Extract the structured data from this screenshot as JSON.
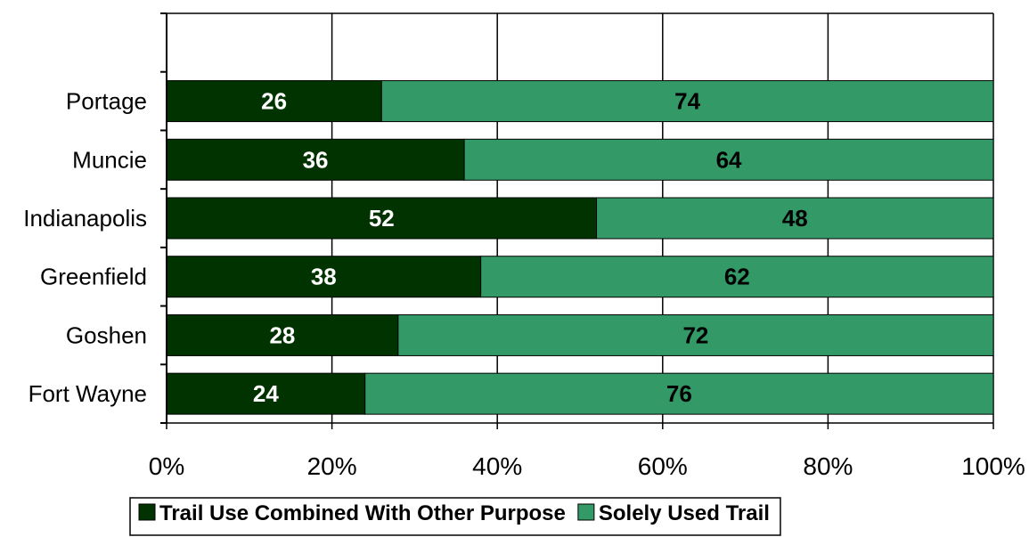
{
  "chart_data": {
    "type": "bar",
    "orientation": "horizontal",
    "stacked": true,
    "categories": [
      "Portage",
      "Muncie",
      "Indianapolis",
      "Greenfield",
      "Goshen",
      "Fort Wayne"
    ],
    "series": [
      {
        "name": "Trail Use Combined With Other Purpose",
        "values": [
          26,
          36,
          52,
          38,
          28,
          24
        ],
        "color": "#003300",
        "label_color": "#ffffff"
      },
      {
        "name": "Solely Used Trail",
        "values": [
          74,
          64,
          48,
          62,
          72,
          76
        ],
        "color": "#339966",
        "label_color": "#000000"
      }
    ],
    "xlim": [
      0,
      100
    ],
    "xticks": [
      "0%",
      "20%",
      "40%",
      "60%",
      "80%",
      "100%"
    ],
    "grid": "vertical",
    "legend": "bottom"
  }
}
